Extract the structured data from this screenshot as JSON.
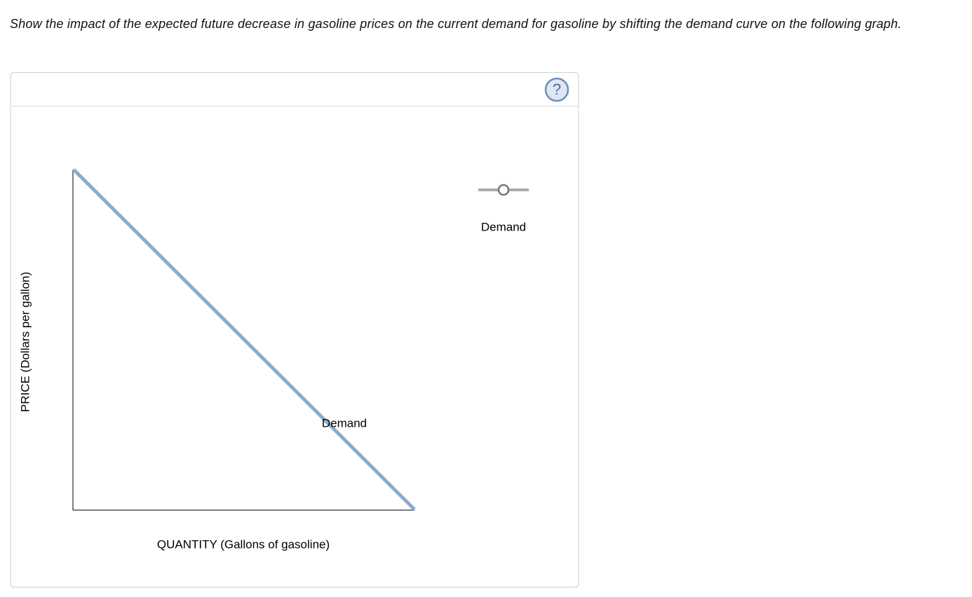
{
  "question": {
    "text": "Show the impact of the expected future decrease in gasoline prices on the current demand for gasoline by shifting the demand curve on the following graph."
  },
  "graph": {
    "help_button": "?",
    "y_axis_label": "PRICE (Dollars per gallon)",
    "x_axis_label": "QUANTITY (Gallons of gasoline)",
    "curve_label": "Demand",
    "legend": {
      "tool_label": "Demand"
    }
  }
}
